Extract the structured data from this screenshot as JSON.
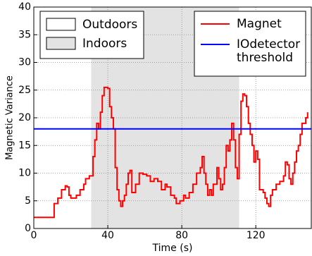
{
  "chart_data": {
    "type": "line",
    "drawstyle": "steps",
    "xlabel": "Time (s)",
    "ylabel": "Magnetic Variance",
    "xlim": [
      0,
      150
    ],
    "ylim": [
      0,
      40
    ],
    "xticks": [
      0,
      40,
      80,
      120
    ],
    "yticks": [
      0,
      5,
      10,
      15,
      20,
      25,
      30,
      35,
      40
    ],
    "grid": true,
    "legend": "upper right",
    "region_legend": "upper left",
    "regions": [
      {
        "name": "Outdoors",
        "color": "#ffffff"
      },
      {
        "name": "Indoors",
        "color": "#e3e3e3",
        "x": [
          31,
          111
        ]
      }
    ],
    "series": [
      {
        "name": "Magnet",
        "color": "#ff0000",
        "x": [
          0,
          11,
          13,
          15,
          17,
          18,
          19,
          20,
          22,
          23,
          25,
          27,
          28,
          30,
          32,
          33,
          34,
          35,
          36,
          37,
          38,
          40,
          41,
          42,
          43,
          44,
          45,
          46,
          47,
          48,
          49,
          50,
          51,
          52,
          53,
          55,
          57,
          59,
          61,
          63,
          65,
          67,
          69,
          71,
          72,
          74,
          76,
          77,
          79,
          81,
          82,
          84,
          86,
          88,
          90,
          91,
          92,
          93,
          94,
          95,
          96,
          97,
          99,
          100,
          101,
          102,
          103,
          104,
          105,
          106,
          107,
          108,
          109,
          110,
          111,
          112,
          113,
          114,
          115,
          116,
          117,
          118,
          119,
          120,
          121,
          122,
          124,
          125,
          126,
          127,
          128,
          129,
          131,
          133,
          135,
          136,
          137,
          138,
          139,
          140,
          141,
          142,
          143,
          144,
          145,
          147,
          148
        ],
        "values": [
          2,
          4.5,
          5.5,
          7,
          7.7,
          7.5,
          6,
          5.5,
          5.5,
          6,
          7,
          8,
          9,
          9.5,
          13,
          16,
          19,
          18,
          21,
          24,
          25.5,
          25.3,
          22,
          20,
          18,
          11,
          7,
          5,
          4,
          5,
          6,
          8,
          10,
          10.5,
          6.5,
          8,
          10,
          9.8,
          9.5,
          8.5,
          9,
          8.5,
          7,
          8,
          7.5,
          6,
          5.5,
          4.5,
          5,
          6,
          5.5,
          6.5,
          8,
          10,
          11,
          13,
          10,
          8,
          6,
          7,
          6,
          8,
          11,
          9,
          7,
          8,
          11,
          15,
          14,
          16,
          19,
          16,
          11,
          9,
          17,
          23,
          24.3,
          24,
          22,
          19,
          17,
          15,
          12,
          14,
          12.5,
          7,
          6.5,
          5.5,
          4.5,
          4,
          6,
          7,
          8,
          8.5,
          9.5,
          12,
          11.5,
          9,
          8,
          10,
          12,
          14,
          15,
          17,
          19,
          20,
          21
        ]
      },
      {
        "name": "IOdetector\nthreshold",
        "color": "#0000ff",
        "x": [
          0,
          150
        ],
        "values": [
          18,
          18
        ]
      }
    ]
  }
}
